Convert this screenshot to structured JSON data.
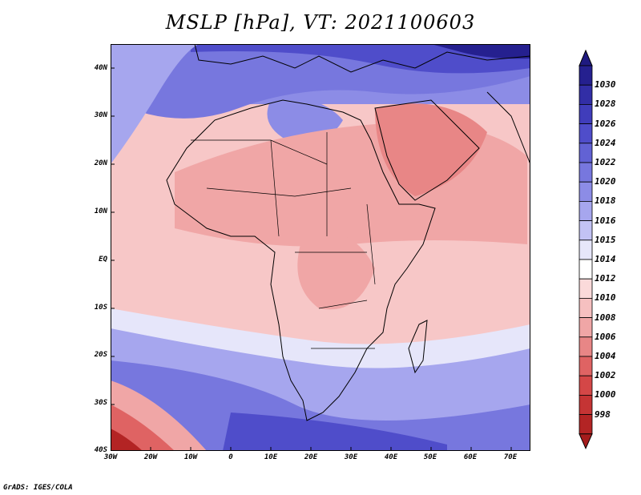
{
  "title": "MSLP [hPa], VT: 2021100603",
  "footer": "GrADS: IGES/COLA",
  "lat_ticks": [
    "40N",
    "30N",
    "20N",
    "10N",
    "EQ",
    "10S",
    "20S",
    "30S",
    "40S"
  ],
  "lon_ticks": [
    "30W",
    "20W",
    "10W",
    "0",
    "10E",
    "20E",
    "30E",
    "40E",
    "50E",
    "60E",
    "70E"
  ],
  "colorbar": {
    "labels": [
      "1030",
      "1028",
      "1026",
      "1024",
      "1022",
      "1020",
      "1018",
      "1016",
      "1015",
      "1014",
      "1012",
      "1010",
      "1008",
      "1006",
      "1004",
      "1002",
      "1000",
      "998"
    ],
    "colors": [
      "#25208f",
      "#322ea6",
      "#403dbb",
      "#4f4dca",
      "#6262d4",
      "#7777de",
      "#8c8ce6",
      "#a6a6ee",
      "#c2c2f4",
      "#e6e6fa",
      "#ffffff",
      "#fbdada",
      "#f6c0c0",
      "#f0a6a6",
      "#e88686",
      "#df6363",
      "#d44747",
      "#c53434",
      "#b32424"
    ],
    "top_arrow": "#1f1a80",
    "bottom_arrow": "#a51c1c"
  }
}
